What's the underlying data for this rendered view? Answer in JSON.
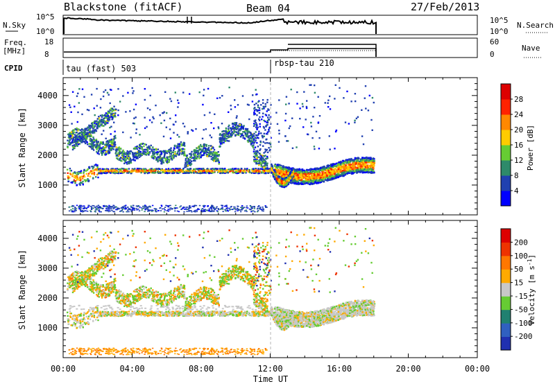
{
  "header": {
    "station": "Blackstone (fitACF)",
    "beam": "Beam 04",
    "date": "27/Feb/2013"
  },
  "top_panels": {
    "nsky_label": "N.Sky",
    "nsky_ticks": [
      "10^5",
      "10^0"
    ],
    "nsearch_label": "N.Search",
    "nsearch_ticks": [
      "10^5",
      "10^0"
    ],
    "freq_label_top": "Freq.",
    "freq_label_bottom": "[MHz]",
    "freq_ticks": [
      "18",
      "8"
    ],
    "nave_label": "Nave",
    "nave_ticks": [
      "60",
      "0"
    ],
    "cpid_label": "CPID",
    "cpid_segments": [
      {
        "label": "tau (fast) 503",
        "start_hour": 0
      },
      {
        "label": "rbsp-tau 210",
        "start_hour": 12
      }
    ]
  },
  "chart_data": [
    {
      "type": "heatmap",
      "name": "power",
      "ylabel": "Slant Range [km]",
      "ylim": [
        0,
        4600
      ],
      "yticks": [
        1000,
        2000,
        3000,
        4000
      ],
      "xlim": [
        0,
        24
      ],
      "colorbar_label": "Power [dB]",
      "colorbar_ticks": [
        4,
        8,
        12,
        16,
        20,
        24,
        28
      ],
      "colorbar_range": [
        0,
        32
      ],
      "colorbar_colors": [
        "#0000ff",
        "#2040b0",
        "#2e8a6a",
        "#66cc33",
        "#ffcc00",
        "#ff8800",
        "#ff2200",
        "#dd0000"
      ]
    },
    {
      "type": "heatmap",
      "name": "velocity",
      "ylabel": "Slant Range [km]",
      "ylim": [
        0,
        4600
      ],
      "yticks": [
        1000,
        2000,
        3000,
        4000
      ],
      "xlim": [
        0,
        24
      ],
      "colorbar_label": "Velocity [m s^-1]",
      "colorbar_ticks": [
        200,
        100,
        50,
        15,
        -15,
        -50,
        -100,
        -200
      ],
      "colorbar_colors": [
        "#2030b0",
        "#3060c0",
        "#208070",
        "#66cc33",
        "#c8c8c8",
        "#ffaa00",
        "#ff7700",
        "#ee3300",
        "#dd0000"
      ]
    }
  ],
  "x_axis": {
    "ticks": [
      "00:00",
      "04:00",
      "08:00",
      "12:00",
      "16:00",
      "20:00",
      "00:00"
    ],
    "label": "Time UT"
  }
}
